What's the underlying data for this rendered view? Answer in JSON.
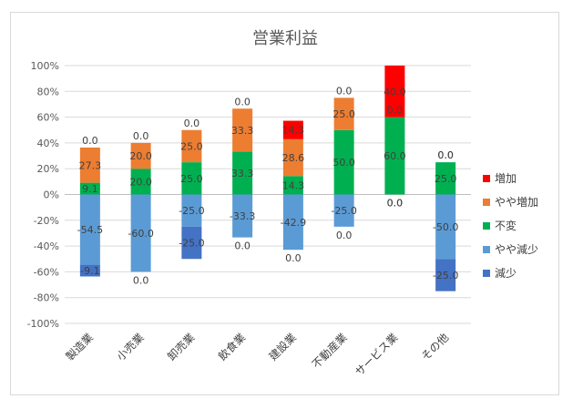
{
  "chart_data": {
    "type": "bar",
    "stacked": true,
    "title": "営業利益",
    "categories": [
      "製造業",
      "小売業",
      "卸売業",
      "飲食業",
      "建設業",
      "不動産業",
      "サービス業",
      "その他"
    ],
    "ylim": [
      -100,
      100
    ],
    "yticks": [
      -100,
      -80,
      -60,
      -40,
      -20,
      0,
      20,
      40,
      60,
      80,
      100
    ],
    "ytick_labels": [
      "-100%",
      "-80%",
      "-60%",
      "-40%",
      "-20%",
      "0%",
      "20%",
      "40%",
      "60%",
      "80%",
      "100%"
    ],
    "grid": true,
    "legend_position": "right",
    "series": [
      {
        "name": "増加",
        "color": "#ff0000",
        "direction": "positive",
        "values": [
          0.0,
          0.0,
          0.0,
          0.0,
          14.3,
          0.0,
          40.0,
          0.0
        ],
        "labels": [
          "0.0",
          "0.0",
          "0.0",
          "0.0",
          "14.3",
          "0.0",
          "40.0",
          "0.0"
        ]
      },
      {
        "name": "やや増加",
        "color": "#ed7d31",
        "direction": "positive",
        "values": [
          27.3,
          20.0,
          25.0,
          33.3,
          28.6,
          25.0,
          0.0,
          0.0
        ],
        "labels": [
          "27.3",
          "20.0",
          "25.0",
          "33.3",
          "28.6",
          "25.0",
          "0.0",
          "0.0"
        ]
      },
      {
        "name": "不変",
        "color": "#00b050",
        "direction": "positive",
        "values": [
          9.1,
          20.0,
          25.0,
          33.3,
          14.3,
          50.0,
          60.0,
          25.0
        ],
        "labels": [
          "9.1",
          "20.0",
          "25.0",
          "33.3",
          "14.3",
          "50.0",
          "60.0",
          "25.0"
        ]
      },
      {
        "name": "やや減少",
        "color": "#5b9bd5",
        "direction": "negative",
        "values": [
          -54.5,
          -60.0,
          -25.0,
          -33.3,
          -42.9,
          -25.0,
          0.0,
          -50.0
        ],
        "labels": [
          "-54.5",
          "-60.0",
          "-25.0",
          "-33.3",
          "-42.9",
          "-25.0",
          "0.0",
          "-50.0"
        ]
      },
      {
        "name": "減少",
        "color": "#4472c4",
        "direction": "negative",
        "values": [
          -9.1,
          0.0,
          -25.0,
          0.0,
          0.0,
          0.0,
          0.0,
          -25.0
        ],
        "labels": [
          "-9.1",
          "0.0",
          "-25.0",
          "0.0",
          "0.0",
          "0.0",
          "0.0",
          "-25.0"
        ]
      }
    ]
  }
}
